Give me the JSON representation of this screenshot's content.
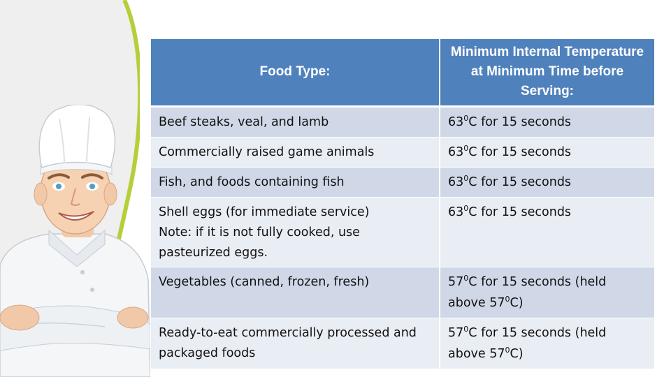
{
  "colors": {
    "header_bg": "#4f81bd",
    "row_odd": "#d0d8e8",
    "row_even": "#e9edf4",
    "panel_gray": "#efefef",
    "accent_green": "#b5cf3a"
  },
  "table": {
    "headers": {
      "food_type": "Food Type:",
      "min_temp": "Minimum Internal Temperature at Minimum Time before Serving:"
    },
    "rows": [
      {
        "food": "Beef steaks, veal, and lamb",
        "temp": {
          "deg": "63",
          "sup": "0",
          "rest": "C for 15 seconds"
        }
      },
      {
        "food": "Commercially raised game animals",
        "temp": {
          "deg": "63",
          "sup": "0",
          "rest": "C for 15 seconds"
        }
      },
      {
        "food": "Fish, and foods containing fish",
        "temp": {
          "deg": "63",
          "sup": "0",
          "rest": "C for 15 seconds"
        }
      },
      {
        "food": "Shell eggs (for immediate service)",
        "note": "Note: if it is not fully cooked, use pasteurized eggs.",
        "temp": {
          "deg": "63",
          "sup": "0",
          "rest": "C for 15 seconds"
        }
      },
      {
        "food": "Vegetables (canned, frozen, fresh)",
        "temp": {
          "deg": "57",
          "sup": "0",
          "rest": "C for 15 seconds (held above 57",
          "sup2": "0",
          "end": "C)"
        }
      },
      {
        "food": "Ready-to-eat commercially processed and packaged foods",
        "temp": {
          "deg": "57",
          "sup": "0",
          "rest": "C for 15 seconds (held above 57",
          "sup2": "0",
          "end": "C)"
        }
      }
    ]
  }
}
